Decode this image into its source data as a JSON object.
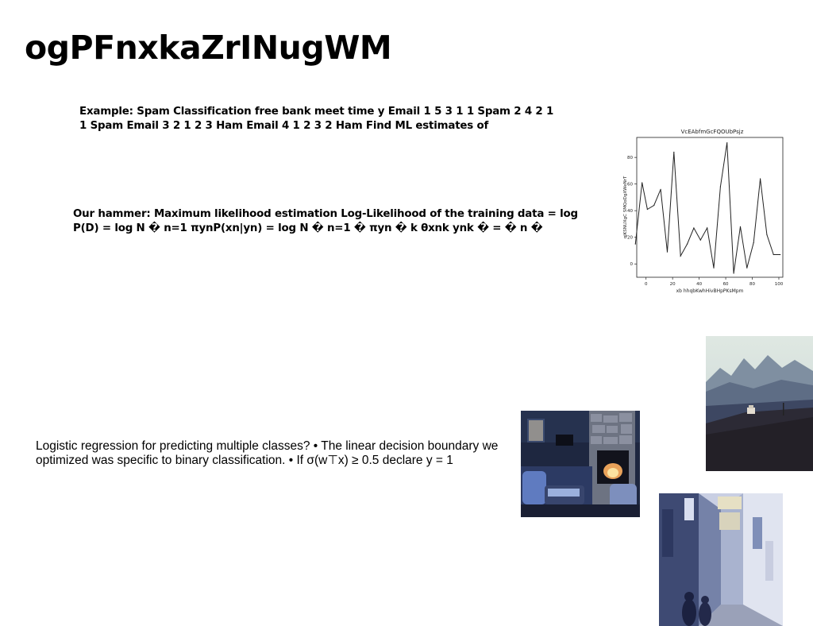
{
  "slide": {
    "title": "ogPFnxkaZrINugWM",
    "spam_text": "Example: Spam Classification free bank meet time y Email 1 5 3 1 1 Spam 2 4 2 1 1 Spam Email 3 2 1 2 3 Ham Email 4 1 2 3 2 Ham Find ML estimates of",
    "hammer_text": "Our hammer: Maximum likelihood estimation Log-Likelihood of the training data = log P(D) = log N � n=1 πynP(xn|yn) = log N � n=1 � πyn � k θxnk ynk � = � n �",
    "logreg_text": "Logistic regression for predicting multiple classes? • The linear decision boundary we optimized was specific to binary classification. • If σ(w⊤x) ≥ 0.5 declare y = 1"
  },
  "chart_data": {
    "type": "line",
    "title": "VcEAbfmGcFQOUbPsjz",
    "xlabel": "xb hhqbKwhHivBHpPKsMpm",
    "ylabel": "qjKSNUXgC SMQoDgXWeNrT",
    "xlim": [
      -7,
      103
    ],
    "ylim": [
      -10,
      95
    ],
    "xticks": [
      0,
      20,
      40,
      60,
      80,
      100
    ],
    "yticks": [
      0,
      20,
      40,
      60,
      80
    ],
    "x": [
      -8,
      -3,
      1,
      6,
      11,
      16,
      21,
      26,
      31,
      36,
      41,
      46,
      51,
      56,
      61,
      66,
      71,
      76,
      81,
      86,
      91,
      96,
      101
    ],
    "y": [
      15,
      61,
      41,
      44,
      56,
      9,
      84,
      6,
      15,
      27,
      18,
      27,
      -3,
      58,
      91,
      -7,
      28,
      -3,
      16,
      64,
      22,
      7,
      7
    ],
    "series_color": "#222222",
    "grid": false
  },
  "photos": {
    "desert_icon": "desert-road-photo",
    "room_icon": "living-room-photo",
    "street_icon": "street-photo"
  }
}
